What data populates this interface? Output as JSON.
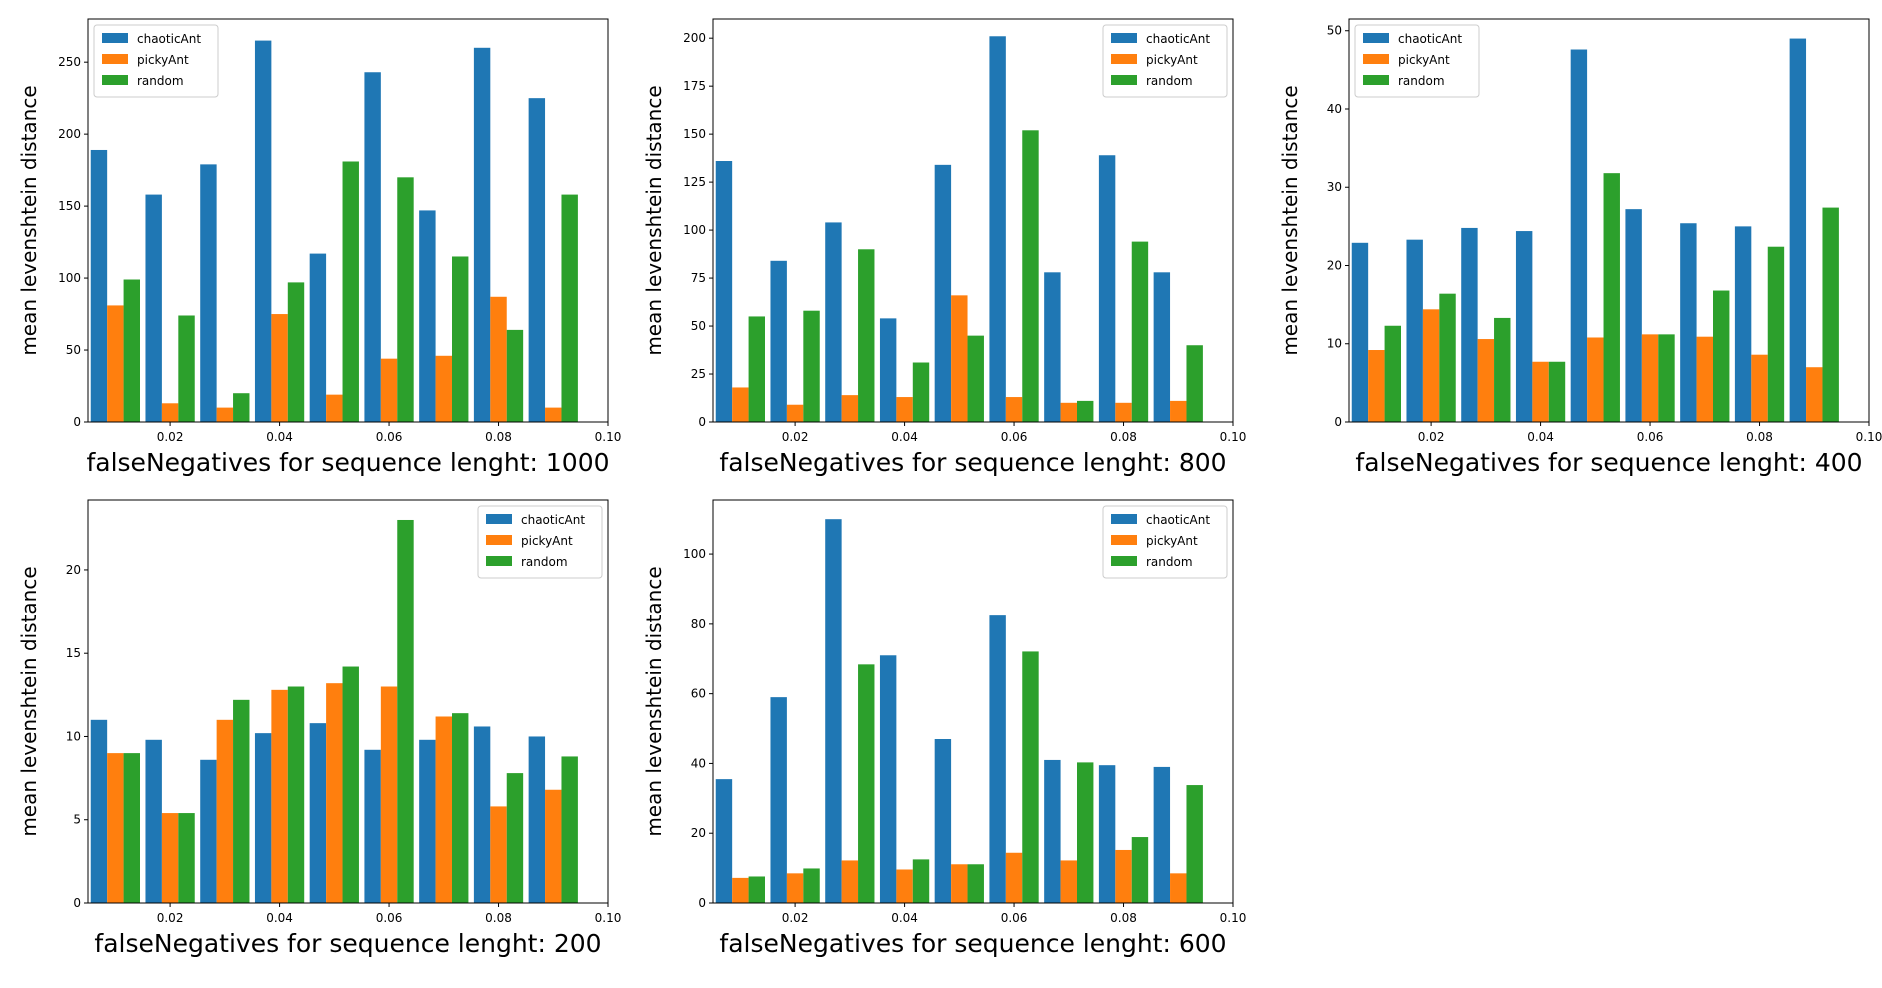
{
  "colors": {
    "chaoticAnt": "#1f77b4",
    "pickyAnt": "#ff7f0e",
    "random": "#2ca02c"
  },
  "chart_data": [
    {
      "type": "bar",
      "xlabel": "falseNegatives for sequence lenght: 1000",
      "ylabel": "mean levenshtein distance",
      "x": [
        0.01,
        0.02,
        0.03,
        0.04,
        0.05,
        0.06,
        0.07,
        0.08,
        0.09
      ],
      "xlim": [
        0.005,
        0.1
      ],
      "xticks": [
        "0.02",
        "0.04",
        "0.06",
        "0.08",
        "0.10"
      ],
      "ylim": [
        0,
        280
      ],
      "yticks": [
        "0",
        "50",
        "100",
        "150",
        "200",
        "250"
      ],
      "legend_position": "upper left",
      "series": [
        {
          "name": "chaoticAnt",
          "values": [
            189,
            158,
            179,
            265,
            117,
            243,
            147,
            260,
            225
          ]
        },
        {
          "name": "pickyAnt",
          "values": [
            81,
            13,
            10,
            75,
            19,
            44,
            46,
            87,
            10
          ]
        },
        {
          "name": "random",
          "values": [
            99,
            74,
            20,
            97,
            181,
            170,
            115,
            64,
            158
          ]
        }
      ]
    },
    {
      "type": "bar",
      "xlabel": "falseNegatives for sequence lenght: 800",
      "ylabel": "mean levenshtein distance",
      "x": [
        0.01,
        0.02,
        0.03,
        0.04,
        0.05,
        0.06,
        0.07,
        0.08,
        0.09
      ],
      "xlim": [
        0.005,
        0.1
      ],
      "xticks": [
        "0.02",
        "0.04",
        "0.06",
        "0.08",
        "0.10"
      ],
      "ylim": [
        0,
        210
      ],
      "yticks": [
        "0",
        "25",
        "50",
        "75",
        "100",
        "125",
        "150",
        "175",
        "200"
      ],
      "legend_position": "upper right",
      "series": [
        {
          "name": "chaoticAnt",
          "values": [
            136,
            84,
            104,
            54,
            134,
            201,
            78,
            139,
            78
          ]
        },
        {
          "name": "pickyAnt",
          "values": [
            18,
            9,
            14,
            13,
            66,
            13,
            10,
            10,
            11
          ]
        },
        {
          "name": "random",
          "values": [
            55,
            58,
            90,
            31,
            45,
            152,
            11,
            94,
            40
          ]
        }
      ]
    },
    {
      "type": "bar",
      "xlabel": "falseNegatives for sequence lenght: 400",
      "ylabel": "mean levenshtein distance",
      "x": [
        0.01,
        0.02,
        0.03,
        0.04,
        0.05,
        0.06,
        0.07,
        0.08,
        0.09
      ],
      "xlim": [
        0.005,
        0.1
      ],
      "xticks": [
        "0.02",
        "0.04",
        "0.06",
        "0.08",
        "0.10"
      ],
      "ylim": [
        0,
        51.5
      ],
      "yticks": [
        "0",
        "10",
        "20",
        "30",
        "40",
        "50"
      ],
      "legend_position": "upper left",
      "series": [
        {
          "name": "chaoticAnt",
          "values": [
            22.9,
            23.3,
            24.8,
            24.4,
            47.6,
            27.2,
            25.4,
            25.0,
            49.0
          ]
        },
        {
          "name": "pickyAnt",
          "values": [
            9.2,
            14.4,
            10.6,
            7.7,
            10.8,
            11.2,
            10.9,
            8.6,
            7.0
          ]
        },
        {
          "name": "random",
          "values": [
            12.3,
            16.4,
            13.3,
            7.7,
            31.8,
            11.2,
            16.8,
            22.4,
            27.4
          ]
        }
      ]
    },
    {
      "type": "bar",
      "xlabel": "falseNegatives for sequence lenght: 200",
      "ylabel": "mean levenshtein distance",
      "x": [
        0.01,
        0.02,
        0.03,
        0.04,
        0.05,
        0.06,
        0.07,
        0.08,
        0.09
      ],
      "xlim": [
        0.005,
        0.1
      ],
      "xticks": [
        "0.02",
        "0.04",
        "0.06",
        "0.08",
        "0.10"
      ],
      "ylim": [
        0,
        24.2
      ],
      "yticks": [
        "0",
        "5",
        "10",
        "15",
        "20"
      ],
      "legend_position": "upper right",
      "series": [
        {
          "name": "chaoticAnt",
          "values": [
            11.0,
            9.8,
            8.6,
            10.2,
            10.8,
            9.2,
            9.8,
            10.6,
            10.0
          ]
        },
        {
          "name": "pickyAnt",
          "values": [
            9.0,
            5.4,
            11.0,
            12.8,
            13.2,
            13.0,
            11.2,
            5.8,
            6.8
          ]
        },
        {
          "name": "random",
          "values": [
            9.0,
            5.4,
            12.2,
            13.0,
            14.2,
            23.0,
            11.4,
            7.8,
            8.8
          ]
        }
      ]
    },
    {
      "type": "bar",
      "xlabel": "falseNegatives for sequence lenght: 600",
      "ylabel": "mean levenshtein distance",
      "x": [
        0.01,
        0.02,
        0.03,
        0.04,
        0.05,
        0.06,
        0.07,
        0.08,
        0.09
      ],
      "xlim": [
        0.005,
        0.1
      ],
      "xticks": [
        "0.02",
        "0.04",
        "0.06",
        "0.08",
        "0.10"
      ],
      "ylim": [
        0,
        115.5
      ],
      "yticks": [
        "0",
        "20",
        "40",
        "60",
        "80",
        "100"
      ],
      "legend_position": "upper right",
      "series": [
        {
          "name": "chaoticAnt",
          "values": [
            35.5,
            59,
            110,
            71,
            47,
            82.5,
            41,
            39.5,
            39
          ]
        },
        {
          "name": "pickyAnt",
          "values": [
            7.2,
            8.5,
            12.2,
            9.6,
            11.1,
            14.4,
            12.2,
            15.2,
            8.5
          ]
        },
        {
          "name": "random",
          "values": [
            7.6,
            9.9,
            68.4,
            12.5,
            11.1,
            72.1,
            40.3,
            18.9,
            33.8
          ]
        }
      ]
    }
  ]
}
